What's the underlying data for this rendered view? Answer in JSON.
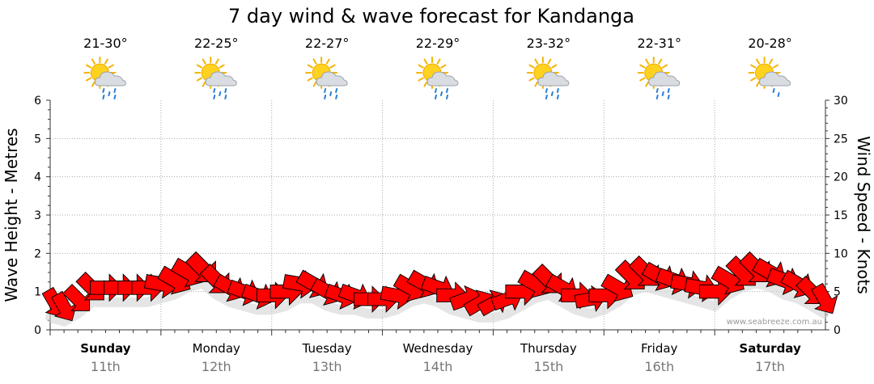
{
  "chart_data": {
    "type": "line",
    "title": "7 day wind & wave forecast for Kandanga",
    "ylabel_left": "Wave Height - Metres",
    "ylabel_right": "Wind Speed - Knots",
    "ylim_left": [
      0,
      6
    ],
    "ylim_right": [
      0,
      30
    ],
    "yticks_left": [
      "0",
      "1",
      "2",
      "3",
      "4",
      "5",
      "6"
    ],
    "yticks_right": [
      "0",
      "5",
      "10",
      "15",
      "20",
      "25",
      "30"
    ],
    "credit": "www.seabreeze.com.au",
    "days": [
      {
        "name": "Sunday",
        "date": "11th",
        "temp": "21-30°",
        "weather": "partly-cloudy-showers",
        "bold": true
      },
      {
        "name": "Monday",
        "date": "12th",
        "temp": "22-25°",
        "weather": "partly-cloudy-showers",
        "bold": false
      },
      {
        "name": "Tuesday",
        "date": "13th",
        "temp": "22-27°",
        "weather": "partly-cloudy-showers",
        "bold": false
      },
      {
        "name": "Wednesday",
        "date": "14th",
        "temp": "22-29°",
        "weather": "partly-cloudy-showers",
        "bold": false
      },
      {
        "name": "Thursday",
        "date": "15th",
        "temp": "23-32°",
        "weather": "partly-cloudy-showers",
        "bold": false
      },
      {
        "name": "Friday",
        "date": "16th",
        "temp": "22-31°",
        "weather": "partly-cloudy-showers",
        "bold": false
      },
      {
        "name": "Saturday",
        "date": "17th",
        "temp": "20-28°",
        "weather": "partly-cloudy-light-rain",
        "bold": true
      }
    ],
    "series": [
      {
        "name": "Wind Speed (knots)",
        "units": "knots",
        "x_days": [
          0.0,
          0.125,
          0.25,
          0.375,
          0.5,
          0.625,
          0.75,
          0.875,
          1.0,
          1.125,
          1.25,
          1.375,
          1.5,
          1.625,
          1.75,
          1.875,
          2.0,
          2.125,
          2.25,
          2.375,
          2.5,
          2.625,
          2.75,
          2.875,
          3.0,
          3.125,
          3.25,
          3.375,
          3.5,
          3.625,
          3.75,
          3.875,
          4.0,
          4.125,
          4.25,
          4.375,
          4.5,
          4.625,
          4.75,
          4.875,
          5.0,
          5.125,
          5.25,
          5.375,
          5.5,
          5.625,
          5.75,
          5.875,
          6.0,
          6.125,
          6.25,
          6.375,
          6.5,
          6.625,
          6.75,
          6.875,
          6.99
        ],
        "values": [
          3.5,
          3.0,
          4.0,
          5.5,
          5.5,
          5.5,
          5.5,
          5.5,
          6.0,
          6.5,
          7.5,
          8.0,
          6.5,
          5.5,
          5.0,
          4.5,
          4.5,
          5.0,
          6.0,
          6.0,
          5.0,
          4.5,
          4.5,
          4.0,
          4.0,
          4.5,
          5.5,
          6.0,
          5.5,
          4.5,
          4.0,
          3.5,
          3.5,
          4.0,
          5.0,
          6.0,
          6.5,
          5.5,
          4.5,
          4.0,
          4.5,
          5.5,
          7.0,
          7.5,
          7.0,
          6.5,
          6.0,
          5.5,
          5.0,
          6.5,
          7.5,
          8.0,
          7.5,
          6.5,
          6.0,
          5.0,
          4.0
        ]
      },
      {
        "name": "Wind Direction (degrees)",
        "units": "degrees",
        "values": [
          330,
          330,
          315,
          315,
          270,
          270,
          270,
          270,
          280,
          300,
          300,
          315,
          315,
          300,
          290,
          290,
          270,
          270,
          280,
          300,
          300,
          290,
          290,
          270,
          270,
          280,
          300,
          300,
          290,
          270,
          250,
          240,
          240,
          250,
          270,
          300,
          315,
          300,
          270,
          260,
          270,
          300,
          315,
          315,
          300,
          290,
          280,
          280,
          270,
          300,
          315,
          315,
          300,
          290,
          300,
          315,
          330
        ]
      }
    ]
  }
}
